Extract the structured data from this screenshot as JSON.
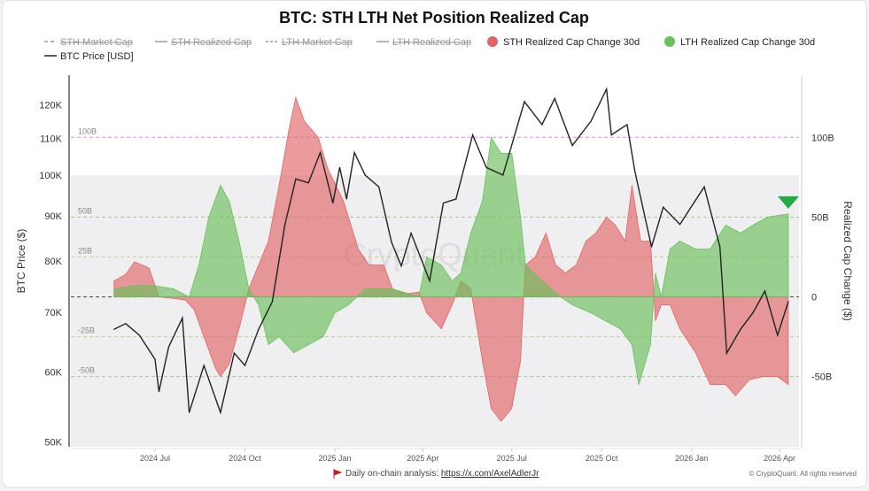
{
  "title": "BTC: STH LTH Net Position Realized Cap",
  "legend": [
    {
      "label": "STH Market Cap",
      "style": "dash",
      "color": "#9a9a9a",
      "hidden": true
    },
    {
      "label": "STH Realized Cap",
      "style": "line",
      "color": "#9a9a9a",
      "hidden": true
    },
    {
      "label": "LTH Market Cap",
      "style": "dashdot",
      "color": "#9a9a9a",
      "hidden": true
    },
    {
      "label": "LTH Realized Cap",
      "style": "line",
      "color": "#9a9a9a",
      "hidden": true
    },
    {
      "label": "STH Realized Cap Change 30d",
      "style": "dot",
      "color": "#e06666",
      "hidden": false
    },
    {
      "label": "LTH Realized Cap Change 30d",
      "style": "dot",
      "color": "#6abf5a",
      "hidden": false
    },
    {
      "label": "BTC Price [USD]",
      "style": "line",
      "color": "#222222",
      "hidden": false
    }
  ],
  "footer": {
    "text": "Daily on-chain analysis: ",
    "link": "https://x.com/AxelAdlerJr",
    "copyright": "© CryptoQuant. All rights reserved",
    "watermark": "CryptoQuant"
  },
  "chart_data": {
    "type": "area",
    "title": "BTC: STH LTH Net Position Realized Cap",
    "x_ticks": [
      {
        "date": "2024-07-01",
        "label": "2024 Jul"
      },
      {
        "date": "2024-10-01",
        "label": "2024 Oct"
      },
      {
        "date": "2025-01-01",
        "label": "2025 Jan"
      },
      {
        "date": "2025-04-01",
        "label": "2025 Apr"
      },
      {
        "date": "2025-07-01",
        "label": "2025 Jul"
      },
      {
        "date": "2025-10-01",
        "label": "2025 Oct"
      },
      {
        "date": "2026-01-01",
        "label": "2026 Jan"
      },
      {
        "date": "2026-04-01",
        "label": "2026 Apr"
      }
    ],
    "y_left": {
      "label": "BTC Price ($)",
      "scale": "log",
      "range": [
        49400,
        129600
      ],
      "ticks": [
        {
          "v": 50000,
          "label": "50K"
        },
        {
          "v": 60000,
          "label": "60K"
        },
        {
          "v": 70000,
          "label": "70K"
        },
        {
          "v": 80000,
          "label": "80K"
        },
        {
          "v": 90000,
          "label": "90K"
        },
        {
          "v": 100000,
          "label": "100K"
        },
        {
          "v": 110000,
          "label": "110K"
        },
        {
          "v": 120000,
          "label": "120K"
        }
      ]
    },
    "y_right": {
      "label": "Realized Cap Change ($)",
      "scale": "linear",
      "range": [
        -94,
        139
      ],
      "ticks": [
        {
          "v": 100,
          "label": "100B"
        },
        {
          "v": 50,
          "label": "50B"
        },
        {
          "v": 0,
          "label": "0"
        },
        {
          "v": -50,
          "label": "-50B"
        }
      ]
    },
    "reference_lines": [
      {
        "v": 100,
        "label": "100B",
        "color": "#d58ae0"
      },
      {
        "v": 50,
        "label": "50B",
        "color": "#a8c98a"
      },
      {
        "v": 25,
        "label": "25B",
        "color": "#c9d48a"
      },
      {
        "v": 0,
        "label": "",
        "color": "#555555"
      },
      {
        "v": -25,
        "label": "-25B",
        "color": "#c9d48a"
      },
      {
        "v": -50,
        "label": "-50B",
        "color": "#a8c98a"
      }
    ],
    "shaded_below_price": 100000,
    "grid": false,
    "legend_position": "top",
    "series": [
      {
        "name": "STH Realized Cap Change 30d",
        "type": "area",
        "axis": "right",
        "color": "#e06666",
        "points": [
          [
            "2024-05-20",
            10
          ],
          [
            "2024-06-01",
            14
          ],
          [
            "2024-06-10",
            22
          ],
          [
            "2024-06-25",
            18
          ],
          [
            "2024-07-05",
            0
          ],
          [
            "2024-07-20",
            -1
          ],
          [
            "2024-08-01",
            -2
          ],
          [
            "2024-08-10",
            -8
          ],
          [
            "2024-08-20",
            -25
          ],
          [
            "2024-09-01",
            -45
          ],
          [
            "2024-09-06",
            -50
          ],
          [
            "2024-09-15",
            -42
          ],
          [
            "2024-09-25",
            -20
          ],
          [
            "2024-10-05",
            5
          ],
          [
            "2024-10-15",
            20
          ],
          [
            "2024-10-25",
            35
          ],
          [
            "2024-11-05",
            70
          ],
          [
            "2024-11-15",
            105
          ],
          [
            "2024-11-22",
            125
          ],
          [
            "2024-12-01",
            110
          ],
          [
            "2024-12-15",
            100
          ],
          [
            "2024-12-25",
            80
          ],
          [
            "2025-01-10",
            60
          ],
          [
            "2025-01-25",
            30
          ],
          [
            "2025-02-05",
            20
          ],
          [
            "2025-02-20",
            20
          ],
          [
            "2025-03-01",
            5
          ],
          [
            "2025-03-15",
            2
          ],
          [
            "2025-03-28",
            3
          ],
          [
            "2025-04-05",
            -10
          ],
          [
            "2025-04-20",
            -20
          ],
          [
            "2025-05-01",
            -5
          ],
          [
            "2025-05-10",
            10
          ],
          [
            "2025-05-20",
            5
          ],
          [
            "2025-06-01",
            -40
          ],
          [
            "2025-06-10",
            -70
          ],
          [
            "2025-06-20",
            -78
          ],
          [
            "2025-07-01",
            -70
          ],
          [
            "2025-07-10",
            -40
          ],
          [
            "2025-07-15",
            20
          ],
          [
            "2025-07-25",
            25
          ],
          [
            "2025-08-05",
            40
          ],
          [
            "2025-08-15",
            20
          ],
          [
            "2025-08-25",
            15
          ],
          [
            "2025-09-05",
            20
          ],
          [
            "2025-09-15",
            35
          ],
          [
            "2025-09-25",
            40
          ],
          [
            "2025-10-06",
            50
          ],
          [
            "2025-10-15",
            45
          ],
          [
            "2025-10-25",
            35
          ],
          [
            "2025-11-01",
            70
          ],
          [
            "2025-11-10",
            35
          ],
          [
            "2025-11-20",
            35
          ],
          [
            "2025-11-25",
            -15
          ],
          [
            "2025-12-01",
            -5
          ],
          [
            "2025-12-10",
            -5
          ],
          [
            "2025-12-20",
            -20
          ],
          [
            "2026-01-05",
            -35
          ],
          [
            "2026-01-20",
            -55
          ],
          [
            "2026-02-05",
            -55
          ],
          [
            "2026-02-15",
            -62
          ],
          [
            "2026-03-01",
            -52
          ],
          [
            "2026-03-15",
            -50
          ],
          [
            "2026-03-30",
            -50
          ],
          [
            "2026-04-10",
            -55
          ]
        ]
      },
      {
        "name": "LTH Realized Cap Change 30d",
        "type": "area",
        "axis": "right",
        "color": "#6abf5a",
        "points": [
          [
            "2024-05-20",
            5
          ],
          [
            "2024-06-10",
            7
          ],
          [
            "2024-07-01",
            7
          ],
          [
            "2024-07-20",
            5
          ],
          [
            "2024-08-05",
            0
          ],
          [
            "2024-08-15",
            20
          ],
          [
            "2024-08-25",
            50
          ],
          [
            "2024-09-06",
            70
          ],
          [
            "2024-09-15",
            60
          ],
          [
            "2024-09-25",
            35
          ],
          [
            "2024-10-05",
            5
          ],
          [
            "2024-10-15",
            -5
          ],
          [
            "2024-10-25",
            -30
          ],
          [
            "2024-11-05",
            -25
          ],
          [
            "2024-11-20",
            -35
          ],
          [
            "2024-12-05",
            -30
          ],
          [
            "2024-12-20",
            -25
          ],
          [
            "2025-01-01",
            -10
          ],
          [
            "2025-01-15",
            -5
          ],
          [
            "2025-02-01",
            5
          ],
          [
            "2025-03-01",
            5
          ],
          [
            "2025-03-28",
            0
          ],
          [
            "2025-04-05",
            25
          ],
          [
            "2025-04-20",
            20
          ],
          [
            "2025-05-01",
            10
          ],
          [
            "2025-05-10",
            15
          ],
          [
            "2025-05-20",
            40
          ],
          [
            "2025-06-01",
            60
          ],
          [
            "2025-06-10",
            100
          ],
          [
            "2025-06-20",
            90
          ],
          [
            "2025-07-01",
            90
          ],
          [
            "2025-07-10",
            50
          ],
          [
            "2025-07-15",
            20
          ],
          [
            "2025-08-01",
            10
          ],
          [
            "2025-08-20",
            0
          ],
          [
            "2025-09-01",
            -5
          ],
          [
            "2025-09-20",
            -10
          ],
          [
            "2025-10-05",
            -15
          ],
          [
            "2025-10-20",
            -20
          ],
          [
            "2025-11-01",
            -30
          ],
          [
            "2025-11-08",
            -55
          ],
          [
            "2025-11-20",
            -30
          ],
          [
            "2025-11-25",
            15
          ],
          [
            "2025-12-01",
            0
          ],
          [
            "2025-12-10",
            30
          ],
          [
            "2025-12-20",
            35
          ],
          [
            "2026-01-05",
            30
          ],
          [
            "2026-01-20",
            30
          ],
          [
            "2026-02-05",
            45
          ],
          [
            "2026-02-20",
            40
          ],
          [
            "2026-03-05",
            45
          ],
          [
            "2026-03-20",
            50
          ],
          [
            "2026-04-10",
            52
          ]
        ]
      },
      {
        "name": "BTC Price [USD]",
        "type": "line",
        "axis": "left",
        "color": "#222222",
        "points": [
          [
            "2024-05-20",
            67000
          ],
          [
            "2024-06-01",
            68000
          ],
          [
            "2024-06-15",
            66000
          ],
          [
            "2024-07-01",
            62000
          ],
          [
            "2024-07-05",
            57000
          ],
          [
            "2024-07-15",
            64000
          ],
          [
            "2024-07-29",
            69000
          ],
          [
            "2024-08-05",
            54000
          ],
          [
            "2024-08-20",
            61000
          ],
          [
            "2024-09-06",
            54000
          ],
          [
            "2024-09-20",
            63000
          ],
          [
            "2024-10-01",
            61000
          ],
          [
            "2024-10-15",
            67000
          ],
          [
            "2024-10-29",
            72000
          ],
          [
            "2024-11-11",
            88000
          ],
          [
            "2024-11-22",
            99000
          ],
          [
            "2024-12-05",
            98000
          ],
          [
            "2024-12-17",
            106000
          ],
          [
            "2024-12-30",
            93000
          ],
          [
            "2025-01-06",
            102000
          ],
          [
            "2025-01-13",
            94000
          ],
          [
            "2025-01-21",
            106000
          ],
          [
            "2025-02-01",
            100000
          ],
          [
            "2025-02-15",
            97000
          ],
          [
            "2025-02-28",
            84000
          ],
          [
            "2025-03-10",
            79000
          ],
          [
            "2025-03-20",
            86000
          ],
          [
            "2025-04-08",
            76000
          ],
          [
            "2025-04-22",
            93000
          ],
          [
            "2025-05-05",
            94000
          ],
          [
            "2025-05-22",
            111000
          ],
          [
            "2025-06-05",
            102000
          ],
          [
            "2025-06-22",
            100000
          ],
          [
            "2025-07-14",
            121000
          ],
          [
            "2025-08-01",
            114000
          ],
          [
            "2025-08-14",
            122000
          ],
          [
            "2025-09-01",
            108000
          ],
          [
            "2025-09-20",
            115000
          ],
          [
            "2025-10-06",
            125000
          ],
          [
            "2025-10-11",
            111000
          ],
          [
            "2025-10-27",
            114000
          ],
          [
            "2025-11-04",
            101000
          ],
          [
            "2025-11-21",
            83000
          ],
          [
            "2025-12-03",
            92000
          ],
          [
            "2025-12-20",
            88000
          ],
          [
            "2026-01-14",
            97000
          ],
          [
            "2026-01-30",
            83000
          ],
          [
            "2026-02-06",
            63000
          ],
          [
            "2026-02-20",
            67000
          ],
          [
            "2026-03-05",
            70000
          ],
          [
            "2026-03-17",
            74000
          ],
          [
            "2026-03-30",
            66000
          ],
          [
            "2026-04-10",
            72000
          ]
        ]
      }
    ],
    "marker": {
      "series": "LTH Realized Cap Change 30d",
      "shape": "triangle-down",
      "color": "#22aa44"
    }
  }
}
